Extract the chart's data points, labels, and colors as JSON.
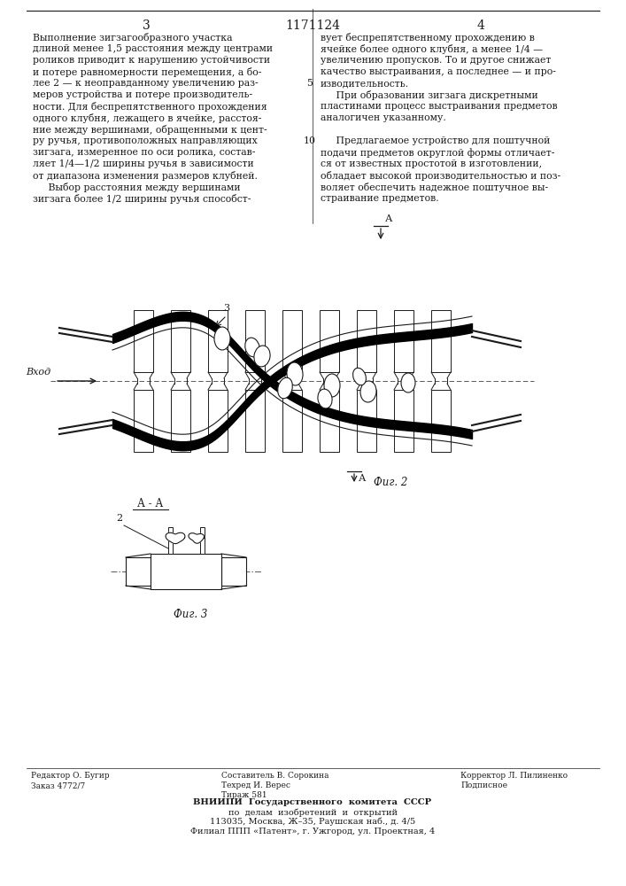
{
  "patent_number": "1171124",
  "page_numbers": [
    "3",
    "4"
  ],
  "bg_color": "#ffffff",
  "text_color": "#1a1a1a",
  "col1_text": [
    "Выполнение зигзагообразного участка",
    "длиной менее 1,5 расстояния между центрами",
    "роликов приводит к нарушению устойчивости",
    "и потере равномерности перемещения, а бо-",
    "лее 2 — к неоправданному увеличению раз-",
    "меров устройства и потере производитель-",
    "ности. Для беспрепятственного прохождения",
    "одного клубня, лежащего в ячейке, расстоя-",
    "ние между вершинами, обращенными к цент-",
    "ру ручья, противоположных направляющих",
    "зигзага, измеренное по оси ролика, состав-",
    "ляет 1/4—1/2 ширины ручья в зависимости",
    "от диапазона изменения размеров клубней.",
    "     Выбор расстояния между вершинами",
    "зигзага более 1/2 ширины ручья способст-"
  ],
  "col2_text_top": [
    "вует беспрепятственному прохождению в",
    "ячейке более одного клубня, а менее 1/4 —",
    "увеличению пропусков. То и другое снижает",
    "качество выстраивания, а последнее — и про-",
    "изводительность.",
    "     При образовании зигзага дискретными",
    "пластинами процесс выстраивания предметов",
    "аналогичен указанному.",
    "",
    "     Предлагаемое устройство для поштучной",
    "подачи предметов округлой формы отличает-",
    "ся от известных простотой в изготовлении,",
    "обладает высокой производительностью и поз-",
    "воляет обеспечить надежное поштучное вы-",
    "страивание предметов."
  ],
  "line_number_5": "5",
  "line_number_10": "10",
  "fig2_label": "Фиг. 2",
  "fig3_label": "Фиг. 3",
  "section_label": "А - А",
  "vkhod_label": "Вход",
  "label_A_top": "А",
  "label_A_bottom": "А",
  "label_3": "3",
  "label_2": "2",
  "footer_left_col1": "Редактор О. Бугир",
  "footer_left_col2": "Заказ 4772/7",
  "footer_mid_col1": "Составитель В. Сорокина",
  "footer_mid_col2": "Техред И. Верес",
  "footer_mid_col3": "Тираж 581",
  "footer_right_col1": "Корректор Л. Пилиненко",
  "footer_right_col2": "Подписное",
  "vniip_line1": "ВНИИПИ  Государственного  комитета  СССР",
  "vniip_line2": "по  делам  изобретений  и  открытий",
  "vniip_line3": "113035, Москва, Ж–35, Раушская наб., д. 4/5",
  "vniip_line4": "Филиал ППП «Патент», г. Ужгород, ул. Проектная, 4"
}
